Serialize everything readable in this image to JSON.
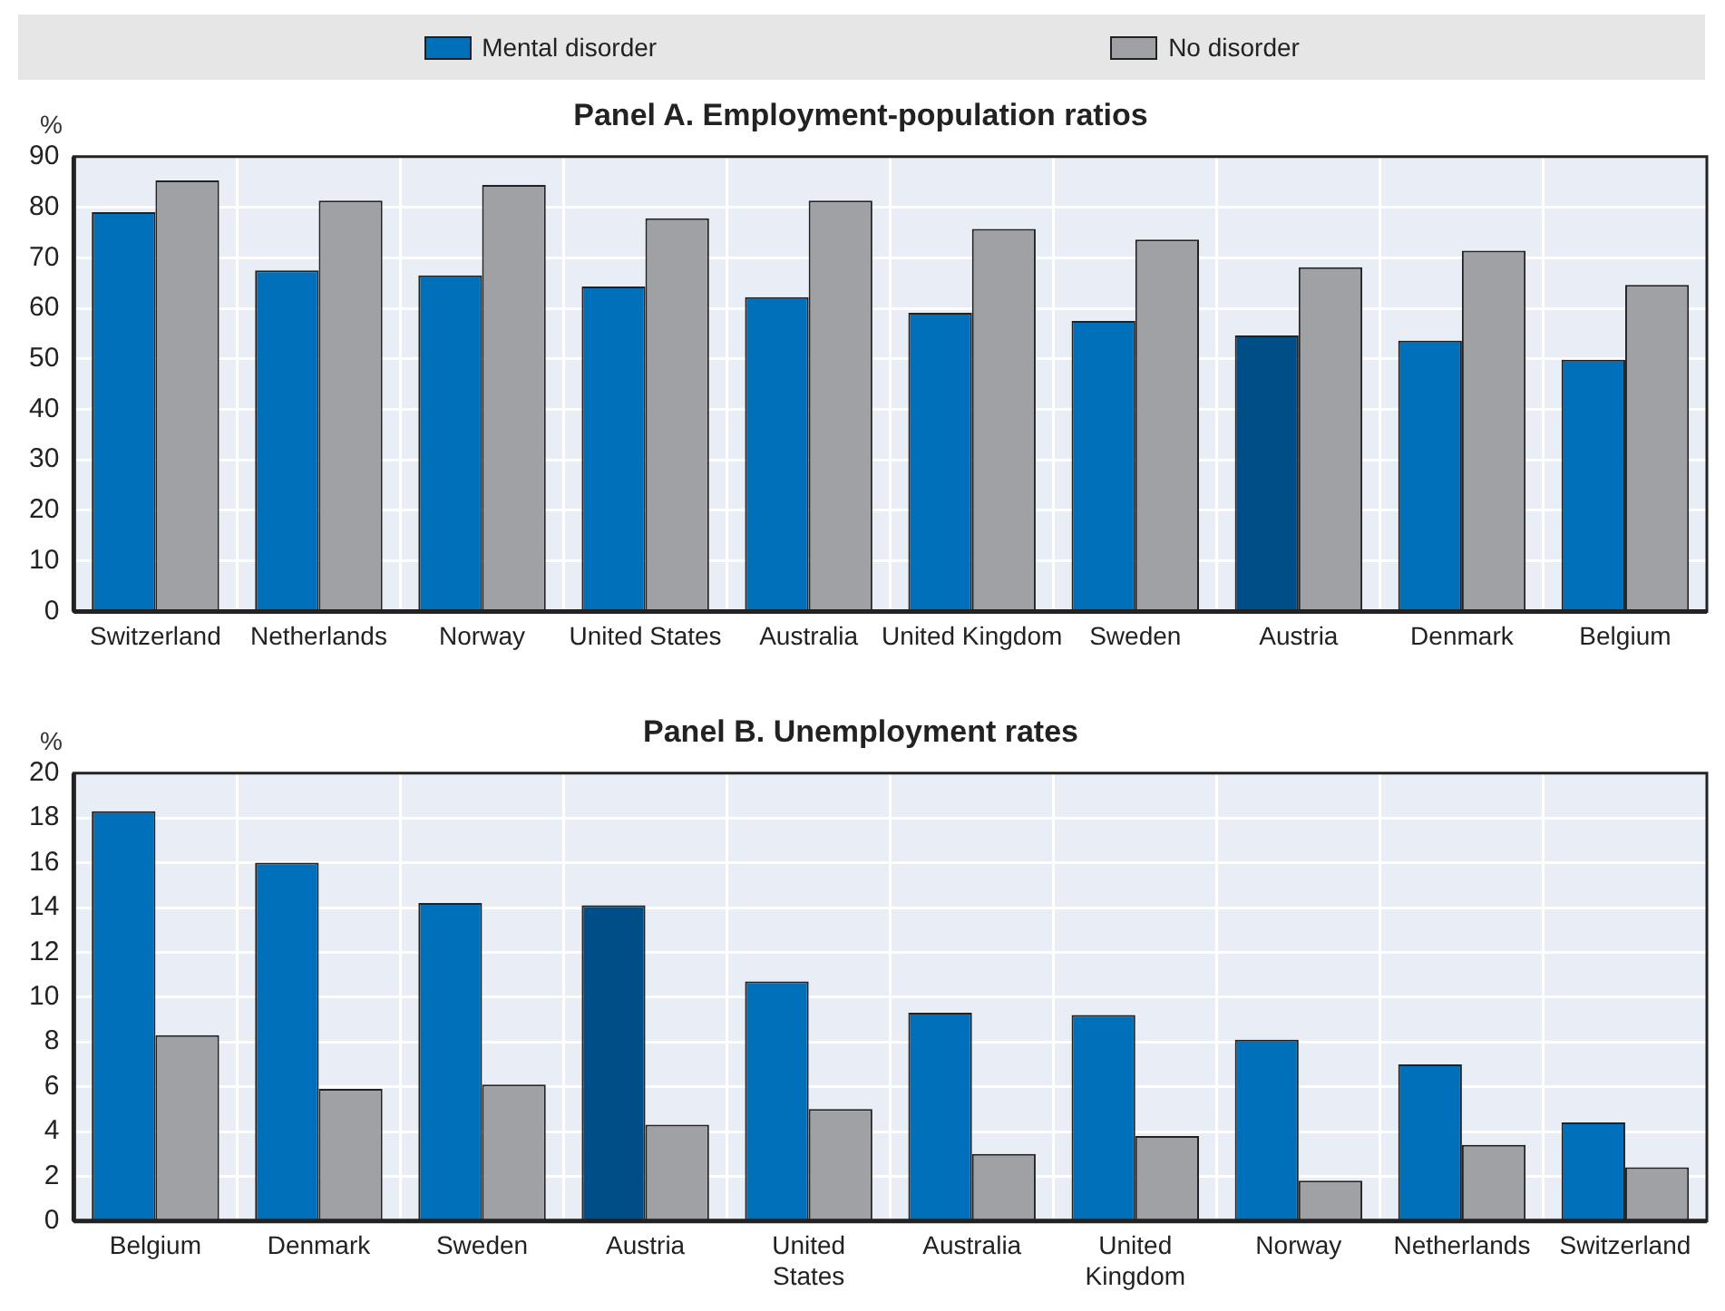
{
  "chart_data": [
    {
      "type": "bar",
      "title": "Panel A. Employment-population ratios",
      "ylabel": "%",
      "categories": [
        "Switzerland",
        "Netherlands",
        "Norway",
        "United States",
        "Australia",
        "United Kingdom",
        "Sweden",
        "Austria",
        "Denmark",
        "Belgium"
      ],
      "series": [
        {
          "name": "Mental disorder",
          "color": "#0070ba",
          "colors": [
            "#0070ba",
            "#0070ba",
            "#0070ba",
            "#0070ba",
            "#0070ba",
            "#0070ba",
            "#0070ba",
            "#004e88",
            "#0070ba",
            "#0070ba"
          ],
          "values": [
            79,
            67.5,
            66.5,
            64.3,
            62.2,
            59.1,
            57.5,
            54.6,
            53.6,
            49.8
          ]
        },
        {
          "name": "No disorder",
          "color": "#a0a1a5",
          "values": [
            85.3,
            81.3,
            84.4,
            77.8,
            81.3,
            75.7,
            73.6,
            68.1,
            71.4,
            64.6
          ]
        }
      ],
      "ylim": [
        0,
        90
      ],
      "yticks": [
        0,
        10,
        20,
        30,
        40,
        50,
        60,
        70,
        80,
        90
      ],
      "grid": true,
      "legend": "top"
    },
    {
      "type": "bar",
      "title": "Panel B. Unemployment rates",
      "ylabel": "%",
      "categories": [
        "Belgium",
        "Denmark",
        "Sweden",
        "Austria",
        "United States",
        "Australia",
        "United Kingdom",
        "Norway",
        "Netherlands",
        "Switzerland"
      ],
      "series": [
        {
          "name": "Mental disorder",
          "color": "#0070ba",
          "colors": [
            "#0070ba",
            "#0070ba",
            "#0070ba",
            "#004e88",
            "#0070ba",
            "#0070ba",
            "#0070ba",
            "#0070ba",
            "#0070ba",
            "#0070ba"
          ],
          "values": [
            18.3,
            16.0,
            14.2,
            14.1,
            10.7,
            9.3,
            9.2,
            8.1,
            7.0,
            4.4
          ]
        },
        {
          "name": "No disorder",
          "color": "#a0a1a5",
          "values": [
            8.3,
            5.9,
            6.1,
            4.3,
            5.0,
            3.0,
            3.8,
            1.8,
            3.4,
            2.4
          ]
        }
      ],
      "ylim": [
        0,
        20
      ],
      "yticks": [
        0,
        2,
        4,
        6,
        8,
        10,
        12,
        14,
        16,
        18,
        20
      ],
      "grid": true
    }
  ]
}
